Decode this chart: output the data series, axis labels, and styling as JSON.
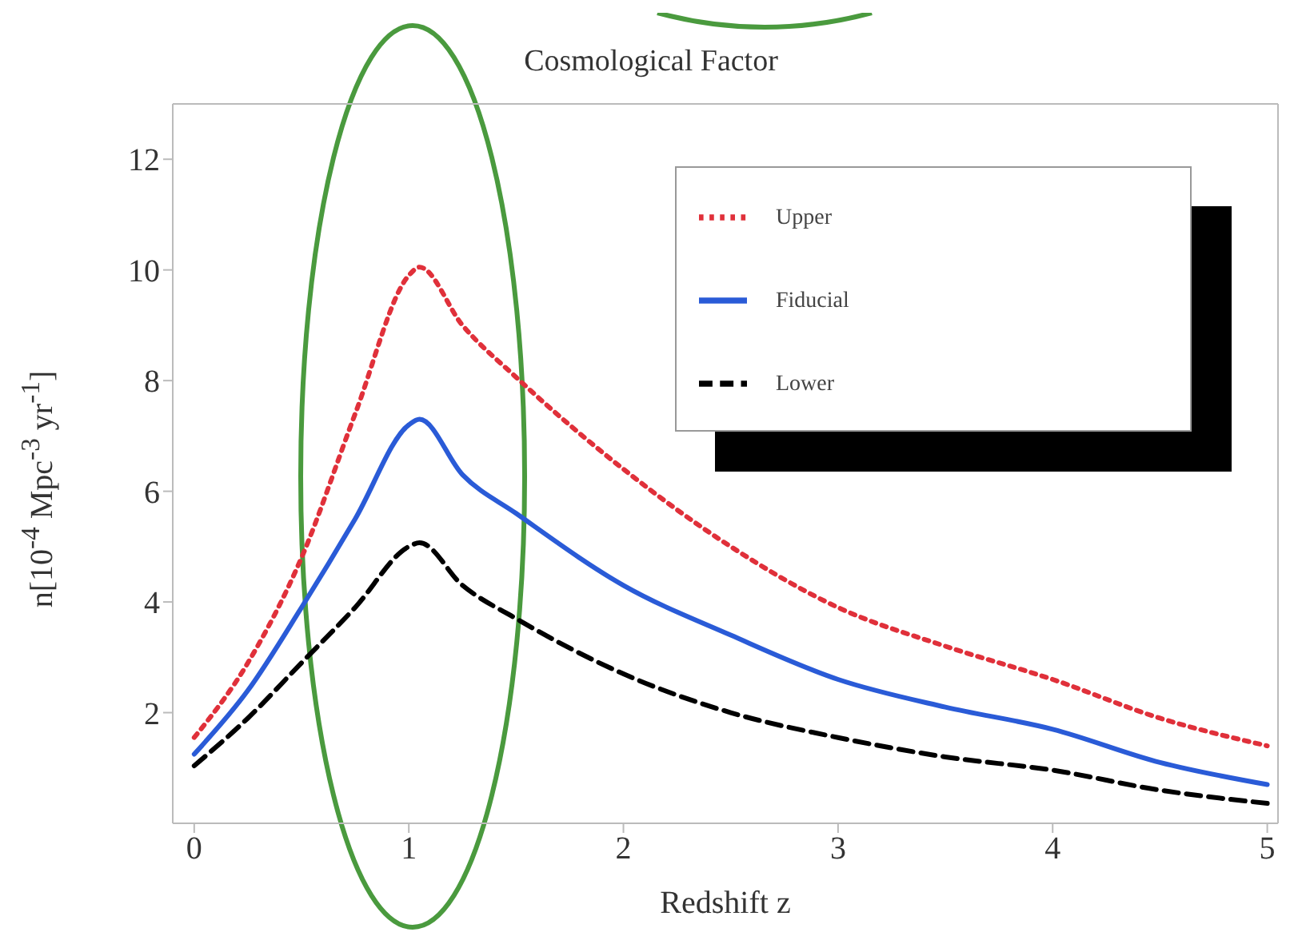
{
  "chart_data": {
    "type": "line",
    "title": "Cosmological Factor",
    "xlabel": "Redshift z",
    "ylabel": "n[10$^{-4}$ Mpc$^{-3}$ yr$^{-1}$]",
    "x": [
      0,
      0.25,
      0.5,
      0.75,
      1,
      1.05,
      1.25,
      1.5,
      2,
      2.5,
      3,
      3.5,
      4,
      4.5,
      5
    ],
    "series": [
      {
        "name": "Upper",
        "color": "#e0303a",
        "line_style": "dotted",
        "values": [
          1.55,
          2.9,
          4.8,
          7.4,
          9.9,
          10.05,
          9.0,
          8.06,
          6.4,
          5.0,
          3.9,
          3.2,
          2.6,
          1.9,
          1.4
        ]
      },
      {
        "name": "Fiducial",
        "color": "#2a5bd7",
        "line_style": "solid",
        "values": [
          1.25,
          2.4,
          3.9,
          5.5,
          7.2,
          7.3,
          6.3,
          5.6,
          4.3,
          3.4,
          2.6,
          2.1,
          1.7,
          1.1,
          0.7
        ]
      },
      {
        "name": "Lower",
        "color": "#000000",
        "line_style": "dashed",
        "values": [
          1.04,
          1.9,
          2.9,
          3.9,
          5.0,
          5.07,
          4.3,
          3.7,
          2.7,
          2.0,
          1.55,
          1.2,
          0.96,
          0.6,
          0.36
        ]
      }
    ],
    "xlim": [
      -0.1,
      5.05
    ],
    "ylim": [
      0,
      13
    ],
    "xticks": [
      0,
      1,
      2,
      3,
      4,
      5
    ],
    "yticks": [
      2,
      4,
      6,
      8,
      10,
      12
    ],
    "legend": "top right",
    "grid": false
  }
}
